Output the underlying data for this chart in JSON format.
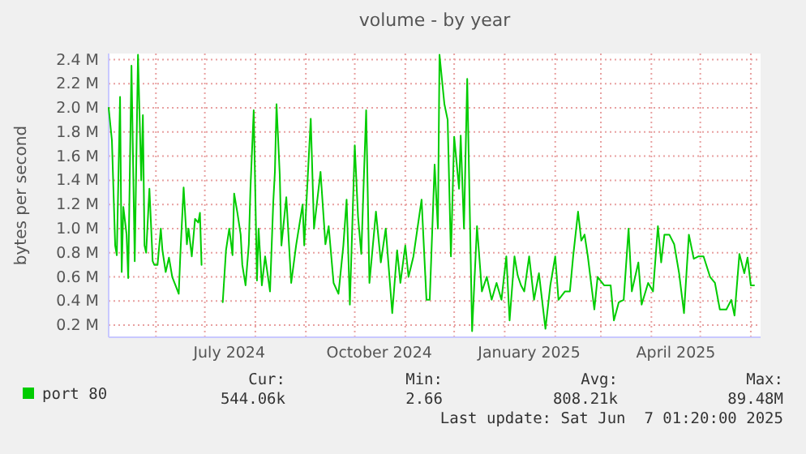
{
  "chart_data": {
    "type": "line",
    "title": "volume - by year",
    "ylabel": "bytes per second",
    "xlim": [
      "2024-05-03",
      "2025-06-07"
    ],
    "xticks": [
      {
        "value": "2024-06-01",
        "label": null
      },
      {
        "value": "2024-07-01",
        "label": null
      },
      {
        "value": "2024-07-16",
        "label": "July 2024"
      },
      {
        "value": "2024-08-01",
        "label": null
      },
      {
        "value": "2024-09-01",
        "label": null
      },
      {
        "value": "2024-10-01",
        "label": null
      },
      {
        "value": "2024-10-16",
        "label": "October 2024"
      },
      {
        "value": "2024-11-01",
        "label": null
      },
      {
        "value": "2024-12-01",
        "label": null
      },
      {
        "value": "2025-01-01",
        "label": null
      },
      {
        "value": "2025-01-16",
        "label": "January 2025"
      },
      {
        "value": "2025-02-01",
        "label": null
      },
      {
        "value": "2025-03-01",
        "label": null
      },
      {
        "value": "2025-04-01",
        "label": null
      },
      {
        "value": "2025-04-16",
        "label": "April 2025"
      },
      {
        "value": "2025-05-01",
        "label": null
      },
      {
        "value": "2025-06-01",
        "label": null
      }
    ],
    "ylim": [
      0.1,
      2.45
    ],
    "yticks": [
      {
        "value": 0.2,
        "label": "0.2 M"
      },
      {
        "value": 0.4,
        "label": "0.4 M"
      },
      {
        "value": 0.6,
        "label": "0.6 M"
      },
      {
        "value": 0.8,
        "label": "0.8 M"
      },
      {
        "value": 1.0,
        "label": "1.0 M"
      },
      {
        "value": 1.2,
        "label": "1.2 M"
      },
      {
        "value": 1.4,
        "label": "1.4 M"
      },
      {
        "value": 1.6,
        "label": "1.6 M"
      },
      {
        "value": 1.8,
        "label": "1.8 M"
      },
      {
        "value": 2.0,
        "label": "2.0 M"
      },
      {
        "value": 2.2,
        "label": "2.2 M"
      },
      {
        "value": 2.4,
        "label": "2.4 M"
      }
    ],
    "grid": true,
    "legend": "bottom",
    "annotations": [
      "Cur:",
      "544.06k",
      "Min:",
      "2.66",
      "Avg:",
      "808.21k",
      "Max:",
      "89.48M",
      "Last update: Sat Jun  7 01:20:00 2025"
    ],
    "series": [
      {
        "name": "port 80",
        "color": "#00cc00",
        "x": [
          "2024-05-03",
          "2024-05-05",
          "2024-05-07",
          "2024-05-08",
          "2024-05-10",
          "2024-05-11",
          "2024-05-12",
          "2024-05-14",
          "2024-05-15",
          "2024-05-17",
          "2024-05-19",
          "2024-05-21",
          "2024-05-23",
          "2024-05-24",
          "2024-05-25",
          "2024-05-26",
          "2024-05-28",
          "2024-05-30",
          "2024-05-31",
          "2024-06-02",
          "2024-06-04",
          "2024-06-05",
          "2024-06-07",
          "2024-06-09",
          "2024-06-11",
          "2024-06-13",
          "2024-06-15",
          "2024-06-16",
          "2024-06-18",
          "2024-06-20",
          "2024-06-21",
          "2024-06-23",
          "2024-06-25",
          "2024-06-27",
          "2024-06-28",
          "2024-06-29",
          "2024-07-05",
          "2024-07-12",
          "2024-07-14",
          "2024-07-16",
          "2024-07-18",
          "2024-07-19",
          "2024-07-21",
          "2024-07-23",
          "2024-07-24",
          "2024-07-26",
          "2024-07-28",
          "2024-07-29",
          "2024-07-31",
          "2024-08-02",
          "2024-08-03",
          "2024-08-05",
          "2024-08-07",
          "2024-08-10",
          "2024-08-12",
          "2024-08-13",
          "2024-08-14",
          "2024-08-16",
          "2024-08-17",
          "2024-08-20",
          "2024-08-23",
          "2024-08-26",
          "2024-08-30",
          "2024-08-31",
          "2024-09-04",
          "2024-09-06",
          "2024-09-10",
          "2024-09-13",
          "2024-09-15",
          "2024-09-18",
          "2024-09-21",
          "2024-09-24",
          "2024-09-26",
          "2024-09-28",
          "2024-10-01",
          "2024-10-03",
          "2024-10-05",
          "2024-10-08",
          "2024-10-10",
          "2024-10-14",
          "2024-10-17",
          "2024-10-20",
          "2024-10-24",
          "2024-10-27",
          "2024-10-29",
          "2024-11-01",
          "2024-11-03",
          "2024-11-06",
          "2024-11-11",
          "2024-11-14",
          "2024-11-16",
          "2024-11-19",
          "2024-11-21",
          "2024-11-22",
          "2024-11-25",
          "2024-11-27",
          "2024-11-29",
          "2024-12-01",
          "2024-12-04",
          "2024-12-05",
          "2024-12-07",
          "2024-12-09",
          "2024-12-12",
          "2024-12-15",
          "2024-12-18",
          "2024-12-21",
          "2024-12-24",
          "2024-12-27",
          "2024-12-30",
          "2025-01-02",
          "2025-01-04",
          "2025-01-07",
          "2025-01-09",
          "2025-01-11",
          "2025-01-13",
          "2025-01-16",
          "2025-01-19",
          "2025-01-22",
          "2025-01-26",
          "2025-01-29",
          "2025-02-01",
          "2025-02-03",
          "2025-02-07",
          "2025-02-10",
          "2025-02-12",
          "2025-02-15",
          "2025-02-17",
          "2025-02-19",
          "2025-02-21",
          "2025-02-25",
          "2025-02-27",
          "2025-03-03",
          "2025-03-07",
          "2025-03-09",
          "2025-03-12",
          "2025-03-15",
          "2025-03-18",
          "2025-03-20",
          "2025-03-24",
          "2025-03-26",
          "2025-03-30",
          "2025-04-02",
          "2025-04-05",
          "2025-04-07",
          "2025-04-09",
          "2025-04-12",
          "2025-04-15",
          "2025-04-18",
          "2025-04-21",
          "2025-04-24",
          "2025-04-27",
          "2025-04-30",
          "2025-05-03",
          "2025-05-07",
          "2025-05-10",
          "2025-05-13",
          "2025-05-17",
          "2025-05-20",
          "2025-05-22",
          "2025-05-25",
          "2025-05-28",
          "2025-05-30",
          "2025-06-01",
          "2025-06-03"
        ],
        "values": [
          2.0,
          1.73,
          0.86,
          0.78,
          2.09,
          0.64,
          1.18,
          0.95,
          0.59,
          2.35,
          0.73,
          2.44,
          1.4,
          1.94,
          0.86,
          0.8,
          1.33,
          0.73,
          0.7,
          0.7,
          1.0,
          0.82,
          0.64,
          0.76,
          0.6,
          0.53,
          0.46,
          0.79,
          1.34,
          0.87,
          1.0,
          0.77,
          1.08,
          1.05,
          1.13,
          0.7,
          null,
          0.39,
          0.82,
          1.0,
          0.78,
          1.29,
          1.13,
          0.95,
          0.7,
          0.53,
          0.87,
          1.33,
          1.98,
          0.57,
          1.0,
          0.53,
          0.77,
          0.48,
          1.22,
          1.47,
          2.03,
          1.44,
          0.86,
          1.26,
          0.55,
          0.86,
          1.2,
          0.86,
          1.91,
          1.0,
          1.47,
          0.87,
          1.02,
          0.55,
          0.46,
          0.86,
          1.24,
          0.37,
          1.69,
          1.1,
          0.79,
          1.98,
          0.55,
          1.14,
          0.72,
          1.0,
          0.3,
          0.82,
          0.55,
          0.86,
          0.6,
          0.77,
          1.24,
          0.41,
          0.41,
          1.53,
          1.0,
          2.44,
          2.03,
          1.9,
          0.77,
          1.76,
          1.33,
          1.77,
          1.0,
          2.24,
          0.15,
          1.02,
          0.48,
          0.6,
          0.41,
          0.55,
          0.41,
          0.77,
          0.24,
          0.77,
          0.61,
          0.53,
          0.48,
          0.77,
          0.41,
          0.63,
          0.17,
          0.53,
          0.77,
          0.41,
          0.48,
          0.48,
          0.77,
          1.14,
          0.9,
          0.95,
          0.77,
          0.33,
          0.6,
          0.53,
          0.53,
          0.24,
          0.39,
          0.41,
          1.0,
          0.48,
          0.72,
          0.37,
          0.55,
          0.48,
          1.02,
          0.72,
          0.95,
          0.95,
          0.87,
          0.63,
          0.3,
          0.95,
          0.75,
          0.77,
          0.77,
          0.6,
          0.55,
          0.33,
          0.33,
          0.41,
          0.28,
          0.79,
          0.63,
          0.76,
          0.53,
          0.53
        ]
      }
    ]
  }
}
